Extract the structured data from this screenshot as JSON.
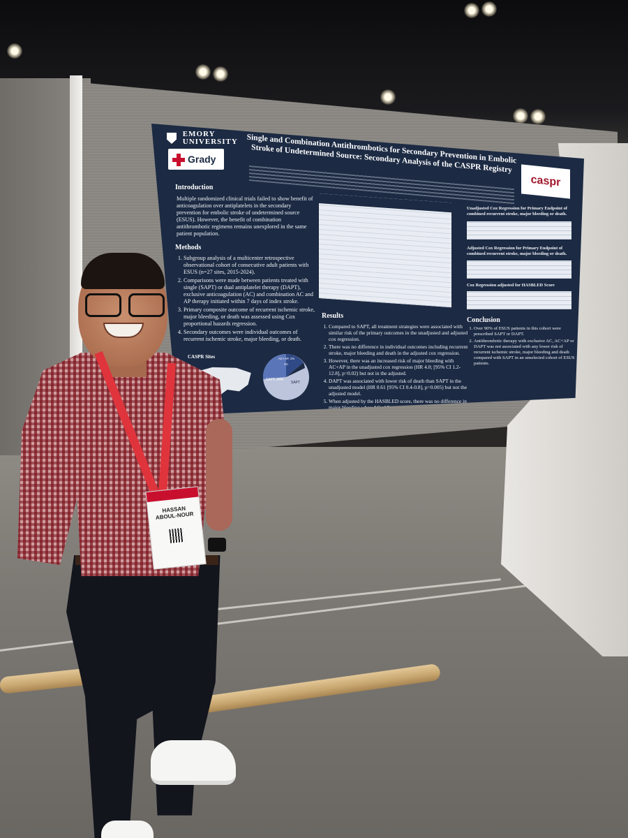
{
  "poster": {
    "logos": {
      "emory": "EMORY\nUNIVERSITY",
      "grady": "Grady",
      "caspr": "caspr"
    },
    "title": "Single and Combination Antithrombotics for Secondary Prevention in Embolic Stroke of Undetermined Source: Secondary Analysis of the CASPR Registry",
    "sections": {
      "introduction_heading": "Introduction",
      "introduction_text": "Multiple randomized clinical trials failed to show benefit of anticoagulation over antiplatelets in the secondary prevention for embolic stroke of undetermined source (ESUS). However, the benefit of combination antithrombotic regimens remains unexplored in the same patient population.",
      "methods_heading": "Methods",
      "methods_items": [
        "Subgroup analysis of a multicenter retrospective observational cohort of consecutive adult patients with ESUS (n=27 sites, 2015-2024).",
        "Comparisons were made between patients treated with single (SAPT) or dual antiplatelet therapy (DAPT), exclusive anticoagulation (AC) and combination AC and AP therapy initiated within 7 days of index stroke.",
        "Primary composite outcome of recurrent ischemic stroke, major bleeding, or death was assessed using Cox proportional hazards regression.",
        "Secondary outcomes were individual outcomes of recurrent ischemic stroke, major bleeding, or death."
      ],
      "results_heading": "Results",
      "results_items": [
        "Compared to SAPT, all treatment strategies were associated with similar risk of the primary outcomes in the unadjusted and adjusted cox regression.",
        "There was no difference in individual outcomes including recurrent stroke, major bleeding and death in the adjusted cox regression.",
        "However, there was an increased risk of major bleeding with AC+AP in the unadjusted cox regression (HR 4.0; [95% CI 1.2-12.8], p=0.02) but not in the adjusted.",
        "DAPT was associated with lower risk of death than SAPT in the unadjusted model (HR 0.61 [95% CI 0.4-0.8], p=0.005) but not the adjusted model.",
        "When adjusted by the HASBLED score, there was no difference in major bleeding when AC+AP was compared to SAPT."
      ],
      "conclusion_heading": "Conclusion",
      "conclusion_items": [
        "Over 90% of ESUS patients in this cohort were prescribed SAPT or DAPT.",
        "Antithrombotic therapy with exclusive AC, AC+AP or DAPT was not associated with any lower risk of recurrent ischemic stroke, major bleeding and death compared with SAPT in an unselected cohort of ESUS patients."
      ],
      "cox1_heading": "Unadjusted Cox Regression for Primary Endpoint of combined recurrent stroke, major bleeding or death.",
      "cox2_heading": "Adjusted Cox Regression for Primary Endpoint of combined recurrent stroke, major bleeding or death.",
      "cox3_heading": "Cox Regression adjusted for HASBLED Score",
      "map_label": "CASPR Sites",
      "pie_labels": [
        "AC+AP, 1%",
        "AC",
        "SAPT, 24%",
        "SAPT"
      ]
    }
  },
  "badge": {
    "name": "HASSAN\nABOUL-NOUR"
  },
  "colors": {
    "poster_navy": "#1c2a43",
    "lanyard_red": "#e0343c",
    "shirt_check": "#b7696b",
    "emory_red": "#c8102e"
  }
}
